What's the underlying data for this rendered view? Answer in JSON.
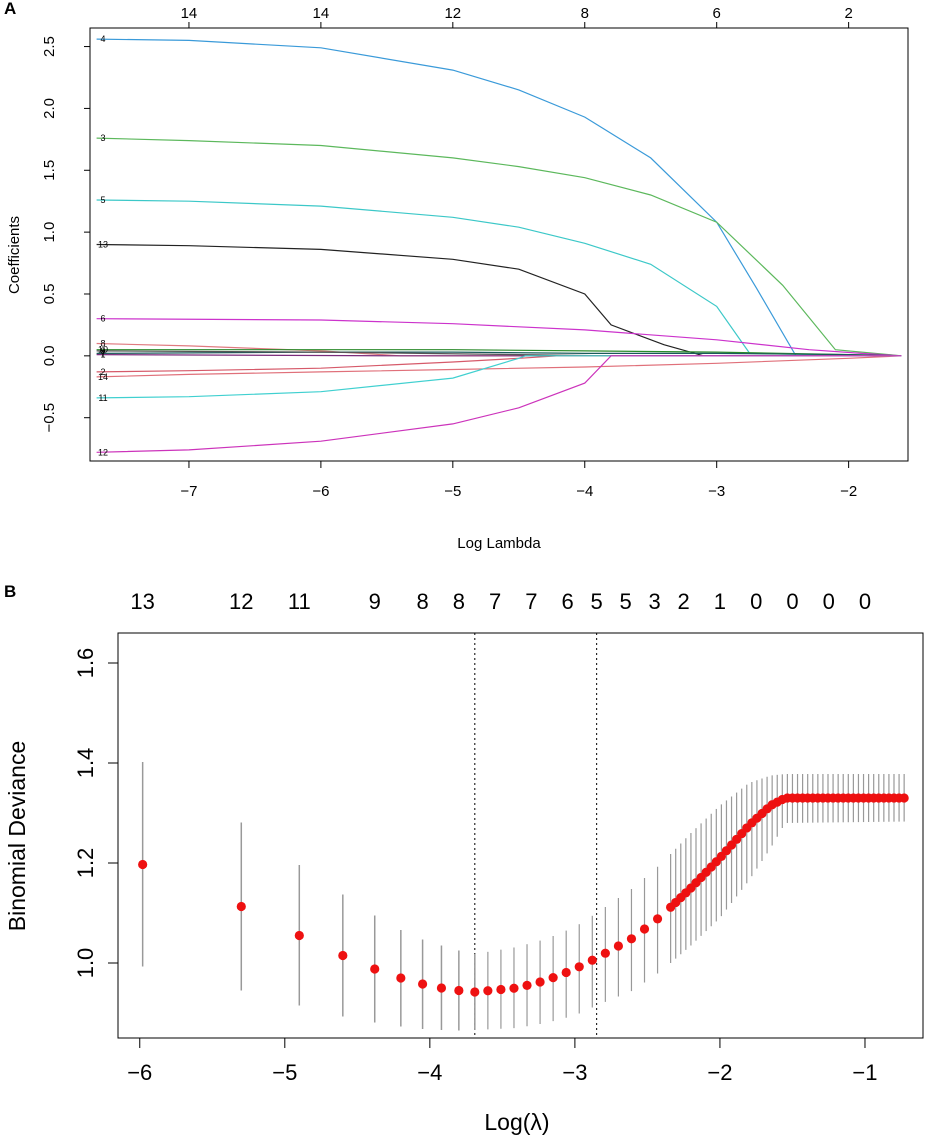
{
  "chart_data": [
    {
      "panel": "A",
      "type": "line",
      "xlabel": "Log Lambda",
      "ylabel": "Coefficients",
      "xlim": [
        -7.75,
        -1.55
      ],
      "ylim": [
        -0.85,
        2.65
      ],
      "x_ticks": [
        -7,
        -6,
        -5,
        -4,
        -3,
        -2
      ],
      "y_ticks": [
        -0.5,
        0.0,
        0.5,
        1.0,
        1.5,
        2.0,
        2.5
      ],
      "top_axis": [
        {
          "x": -7,
          "label": "14"
        },
        {
          "x": -6,
          "label": "14"
        },
        {
          "x": -5,
          "label": "12"
        },
        {
          "x": -4,
          "label": "8"
        },
        {
          "x": -3,
          "label": "6"
        },
        {
          "x": -2,
          "label": "2"
        }
      ],
      "series": [
        {
          "name": "4",
          "color": "#3a9ad9",
          "points": [
            [
              -7.7,
              2.56
            ],
            [
              -7,
              2.55
            ],
            [
              -6,
              2.49
            ],
            [
              -5,
              2.31
            ],
            [
              -4.5,
              2.15
            ],
            [
              -4,
              1.93
            ],
            [
              -3.5,
              1.6
            ],
            [
              -3,
              1.08
            ],
            [
              -2.7,
              0.55
            ],
            [
              -2.4,
              0.0
            ],
            [
              -1.6,
              0.0
            ]
          ]
        },
        {
          "name": "3",
          "color": "#5cb85c",
          "points": [
            [
              -7.7,
              1.76
            ],
            [
              -7,
              1.74
            ],
            [
              -6,
              1.7
            ],
            [
              -5,
              1.6
            ],
            [
              -4.5,
              1.53
            ],
            [
              -4,
              1.44
            ],
            [
              -3.5,
              1.3
            ],
            [
              -3,
              1.08
            ],
            [
              -2.5,
              0.57
            ],
            [
              -2.1,
              0.05
            ],
            [
              -1.6,
              0.0
            ]
          ]
        },
        {
          "name": "5",
          "color": "#3cc8c8",
          "points": [
            [
              -7.7,
              1.26
            ],
            [
              -7,
              1.25
            ],
            [
              -6,
              1.21
            ],
            [
              -5,
              1.12
            ],
            [
              -4.5,
              1.04
            ],
            [
              -4,
              0.91
            ],
            [
              -3.5,
              0.74
            ],
            [
              -3,
              0.4
            ],
            [
              -2.75,
              0.02
            ],
            [
              -1.6,
              0.0
            ]
          ]
        },
        {
          "name": "13",
          "color": "#222222",
          "points": [
            [
              -7.7,
              0.9
            ],
            [
              -7,
              0.89
            ],
            [
              -6,
              0.86
            ],
            [
              -5,
              0.78
            ],
            [
              -4.5,
              0.7
            ],
            [
              -4,
              0.5
            ],
            [
              -3.8,
              0.25
            ],
            [
              -3.4,
              0.09
            ],
            [
              -3.1,
              0.0
            ],
            [
              -1.6,
              0.0
            ]
          ]
        },
        {
          "name": "6",
          "color": "#cc33cc",
          "points": [
            [
              -7.7,
              0.3
            ],
            [
              -6,
              0.29
            ],
            [
              -5,
              0.26
            ],
            [
              -4,
              0.21
            ],
            [
              -3,
              0.13
            ],
            [
              -2.3,
              0.05
            ],
            [
              -1.9,
              0.02
            ],
            [
              -1.6,
              0.0
            ]
          ]
        },
        {
          "name": "8",
          "color": "#e07a80",
          "points": [
            [
              -7.7,
              0.1
            ],
            [
              -7,
              0.08
            ],
            [
              -6,
              0.04
            ],
            [
              -5.4,
              0.0
            ],
            [
              -1.6,
              0.0
            ]
          ]
        },
        {
          "name": "10",
          "color": "#2a8a2a",
          "points": [
            [
              -7.7,
              0.05
            ],
            [
              -6,
              0.05
            ],
            [
              -5,
              0.05
            ],
            [
              -4,
              0.04
            ],
            [
              -3,
              0.03
            ],
            [
              -2,
              0.01
            ],
            [
              -1.6,
              0.0
            ]
          ]
        },
        {
          "name": "7",
          "color": "#1a5a5a",
          "points": [
            [
              -7.7,
              0.02
            ],
            [
              -6,
              0.03
            ],
            [
              -5,
              0.03
            ],
            [
              -4,
              0.02
            ],
            [
              -3,
              0.02
            ],
            [
              -2,
              0.01
            ],
            [
              -1.6,
              0.0
            ]
          ]
        },
        {
          "name": "1",
          "color": "#7a2a7a",
          "points": [
            [
              -7.7,
              0.01
            ],
            [
              -5.5,
              0.0
            ],
            [
              -1.6,
              0.0
            ]
          ]
        },
        {
          "name": "9",
          "color": "#555555",
          "points": [
            [
              -7.7,
              0.04
            ],
            [
              -6,
              0.03
            ],
            [
              -4.5,
              0.01
            ],
            [
              -3.8,
              0.0
            ],
            [
              -1.6,
              0.0
            ]
          ]
        },
        {
          "name": "2",
          "color": "#d65a6a",
          "points": [
            [
              -7.7,
              -0.13
            ],
            [
              -7,
              -0.12
            ],
            [
              -6,
              -0.1
            ],
            [
              -5,
              -0.05
            ],
            [
              -4.5,
              -0.02
            ],
            [
              -4.2,
              0.0
            ],
            [
              -1.6,
              0.0
            ]
          ]
        },
        {
          "name": "14",
          "color": "#e0707a",
          "points": [
            [
              -7.7,
              -0.17
            ],
            [
              -7,
              -0.15
            ],
            [
              -6,
              -0.13
            ],
            [
              -5,
              -0.11
            ],
            [
              -4,
              -0.09
            ],
            [
              -3,
              -0.06
            ],
            [
              -2,
              -0.02
            ],
            [
              -1.6,
              0.0
            ]
          ]
        },
        {
          "name": "11",
          "color": "#40d0d0",
          "points": [
            [
              -7.7,
              -0.34
            ],
            [
              -7,
              -0.33
            ],
            [
              -6,
              -0.29
            ],
            [
              -5,
              -0.18
            ],
            [
              -4.5,
              -0.02
            ],
            [
              -4.45,
              0.0
            ],
            [
              -1.6,
              0.0
            ]
          ]
        },
        {
          "name": "12",
          "color": "#cc33bb",
          "points": [
            [
              -7.7,
              -0.78
            ],
            [
              -7,
              -0.76
            ],
            [
              -6,
              -0.69
            ],
            [
              -5,
              -0.55
            ],
            [
              -4.5,
              -0.42
            ],
            [
              -4,
              -0.22
            ],
            [
              -3.8,
              0.0
            ],
            [
              -1.6,
              0.0
            ]
          ]
        }
      ]
    },
    {
      "panel": "B",
      "type": "scatter",
      "xlabel": "Log(λ)",
      "ylabel": "Binomial Deviance",
      "xlim": [
        -6.15,
        -0.6
      ],
      "ylim": [
        0.85,
        1.66
      ],
      "x_ticks": [
        -6,
        -5,
        -4,
        -3,
        -2,
        -1
      ],
      "y_ticks": [
        1.0,
        1.2,
        1.4,
        1.6
      ],
      "vlines": [
        -3.69,
        -2.85
      ],
      "top_axis": [
        {
          "x": -5.98,
          "label": "13"
        },
        {
          "x": -5.3,
          "label": "12"
        },
        {
          "x": -4.9,
          "label": "11"
        },
        {
          "x": -4.38,
          "label": "9"
        },
        {
          "x": -4.05,
          "label": "8"
        },
        {
          "x": -3.8,
          "label": "8"
        },
        {
          "x": -3.55,
          "label": "7"
        },
        {
          "x": -3.3,
          "label": "7"
        },
        {
          "x": -3.05,
          "label": "6"
        },
        {
          "x": -2.85,
          "label": "5"
        },
        {
          "x": -2.65,
          "label": "5"
        },
        {
          "x": -2.45,
          "label": "3"
        },
        {
          "x": -2.25,
          "label": "2"
        },
        {
          "x": -2.0,
          "label": "1"
        },
        {
          "x": -1.75,
          "label": "0"
        },
        {
          "x": -1.5,
          "label": "0"
        },
        {
          "x": -1.25,
          "label": "0"
        },
        {
          "x": -1.0,
          "label": "0"
        }
      ],
      "points": [
        {
          "x": -5.98,
          "y": 1.197,
          "lo": 0.993,
          "hi": 1.402
        },
        {
          "x": -5.3,
          "y": 1.113,
          "lo": 0.945,
          "hi": 1.281
        },
        {
          "x": -4.9,
          "y": 1.055,
          "lo": 0.915,
          "hi": 1.196
        },
        {
          "x": -4.6,
          "y": 1.015,
          "lo": 0.893,
          "hi": 1.137
        },
        {
          "x": -4.38,
          "y": 0.988,
          "lo": 0.881,
          "hi": 1.095
        },
        {
          "x": -4.2,
          "y": 0.97,
          "lo": 0.873,
          "hi": 1.066
        },
        {
          "x": -4.05,
          "y": 0.958,
          "lo": 0.868,
          "hi": 1.047
        },
        {
          "x": -3.92,
          "y": 0.95,
          "lo": 0.866,
          "hi": 1.035
        },
        {
          "x": -3.8,
          "y": 0.945,
          "lo": 0.865,
          "hi": 1.025
        },
        {
          "x": -3.69,
          "y": 0.942,
          "lo": 0.866,
          "hi": 1.018
        }
      ],
      "curve_points": [
        [
          -3.69,
          0.942
        ],
        [
          -3.4,
          0.95
        ],
        [
          -3.2,
          0.965
        ],
        [
          -3.0,
          0.988
        ],
        [
          -2.85,
          1.01
        ],
        [
          -2.6,
          1.05
        ],
        [
          -2.4,
          1.095
        ],
        [
          -2.2,
          1.15
        ],
        [
          -2.0,
          1.21
        ],
        [
          -1.8,
          1.275
        ],
        [
          -1.65,
          1.315
        ],
        [
          -1.55,
          1.33
        ],
        [
          -0.7,
          1.33
        ]
      ],
      "curve_err_low": [
        [
          -3.69,
          0.866
        ],
        [
          -3.4,
          0.87
        ],
        [
          -3.2,
          0.88
        ],
        [
          -3.0,
          0.895
        ],
        [
          -2.85,
          0.915
        ],
        [
          -2.6,
          0.945
        ],
        [
          -2.4,
          0.985
        ],
        [
          -2.2,
          1.035
        ],
        [
          -2.0,
          1.09
        ],
        [
          -1.8,
          1.165
        ],
        [
          -1.65,
          1.23
        ],
        [
          -1.55,
          1.28
        ],
        [
          -0.7,
          1.283
        ]
      ],
      "curve_err_high": [
        [
          -3.69,
          1.018
        ],
        [
          -3.4,
          1.032
        ],
        [
          -3.2,
          1.048
        ],
        [
          -3.0,
          1.072
        ],
        [
          -2.85,
          1.1
        ],
        [
          -2.6,
          1.15
        ],
        [
          -2.4,
          1.2
        ],
        [
          -2.2,
          1.26
        ],
        [
          -2.0,
          1.315
        ],
        [
          -1.8,
          1.36
        ],
        [
          -1.65,
          1.375
        ],
        [
          -1.55,
          1.378
        ],
        [
          -0.7,
          1.378
        ]
      ]
    }
  ]
}
